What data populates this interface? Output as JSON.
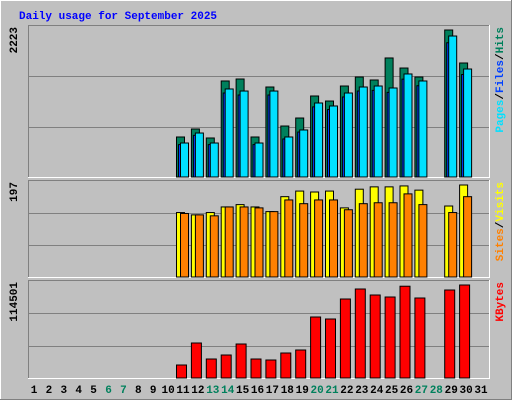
{
  "chart_data": {
    "type": "bar",
    "title": "Daily usage for September 2025",
    "title_color": "#0000ff",
    "categories": [
      "1",
      "2",
      "3",
      "4",
      "5",
      "6",
      "7",
      "8",
      "9",
      "10",
      "11",
      "12",
      "13",
      "14",
      "15",
      "16",
      "17",
      "18",
      "19",
      "20",
      "21",
      "22",
      "23",
      "24",
      "25",
      "26",
      "27",
      "28",
      "29",
      "30",
      "31"
    ],
    "category_colors": [
      "#000000",
      "#000000",
      "#000000",
      "#000000",
      "#000000",
      "#00805c",
      "#00805c",
      "#000000",
      "#000000",
      "#000000",
      "#000000",
      "#000000",
      "#00805c",
      "#00805c",
      "#000000",
      "#000000",
      "#000000",
      "#000000",
      "#000000",
      "#00805c",
      "#00805c",
      "#000000",
      "#000000",
      "#000000",
      "#000000",
      "#000000",
      "#00805c",
      "#00805c",
      "#000000",
      "#000000",
      "#000000"
    ],
    "legend_separator": "/",
    "panels": [
      {
        "ylim": [
          0,
          2223
        ],
        "yticks": [
          2223
        ],
        "series": [
          {
            "name": "Hits",
            "color": "#00805c",
            "values": [
              null,
              null,
              null,
              null,
              null,
              null,
              null,
              null,
              null,
              null,
              605,
              726,
              590,
              1452,
              1482,
              605,
              1361,
              771,
              892,
              1225,
              1149,
              1376,
              1512,
              1467,
              1800,
              1648,
              1512,
              null,
              2223,
              1724,
              null
            ]
          },
          {
            "name": "Files",
            "color": "#0040ff",
            "values": [
              null,
              null,
              null,
              null,
              null,
              null,
              null,
              null,
              null,
              null,
              490,
              630,
              490,
              1270,
              1240,
              490,
              1240,
              575,
              680,
              1060,
              1020,
              1210,
              1300,
              1310,
              1280,
              1480,
              1380,
              null,
              2030,
              1550,
              null
            ]
          },
          {
            "name": "Pages",
            "color": "#00e0ff",
            "values": [
              null,
              null,
              null,
              null,
              null,
              null,
              null,
              null,
              null,
              null,
              514,
              665,
              514,
              1331,
              1300,
              514,
              1300,
              605,
              711,
              1119,
              1074,
              1270,
              1361,
              1376,
              1346,
              1558,
              1452,
              null,
              2132,
              1633,
              null
            ]
          }
        ]
      },
      {
        "ylim": [
          0,
          197
        ],
        "yticks": [
          197
        ],
        "series": [
          {
            "name": "Visits",
            "color": "#ffff00",
            "values": [
              null,
              null,
              null,
              null,
              null,
              null,
              null,
              null,
              null,
              null,
              138,
              133,
              138,
              150,
              155,
              150,
              140,
              172,
              184,
              182,
              184,
              148,
              188,
              193,
              193,
              195,
              186,
              null,
              152,
              197,
              null
            ]
          },
          {
            "name": "Sites",
            "color": "#ff8000",
            "values": [
              null,
              null,
              null,
              null,
              null,
              null,
              null,
              null,
              null,
              null,
              136,
              133,
              131,
              150,
              150,
              148,
              140,
              165,
              157,
              165,
              165,
              144,
              157,
              159,
              159,
              178,
              155,
              null,
              138,
              172,
              null
            ]
          }
        ]
      },
      {
        "ylim": [
          0,
          114501
        ],
        "yticks": [
          114501
        ],
        "series": [
          {
            "name": "KBytes",
            "color": "#ff0000",
            "values": [
              null,
              null,
              null,
              null,
              null,
              null,
              null,
              null,
              null,
              null,
              16005,
              43092,
              23393,
              28317,
              41861,
              23393,
              22162,
              30780,
              34473,
              75101,
              72639,
              97262,
              109574,
              102187,
              99725,
              113000,
              98494,
              null,
              108343,
              114501,
              null
            ]
          }
        ]
      }
    ]
  }
}
